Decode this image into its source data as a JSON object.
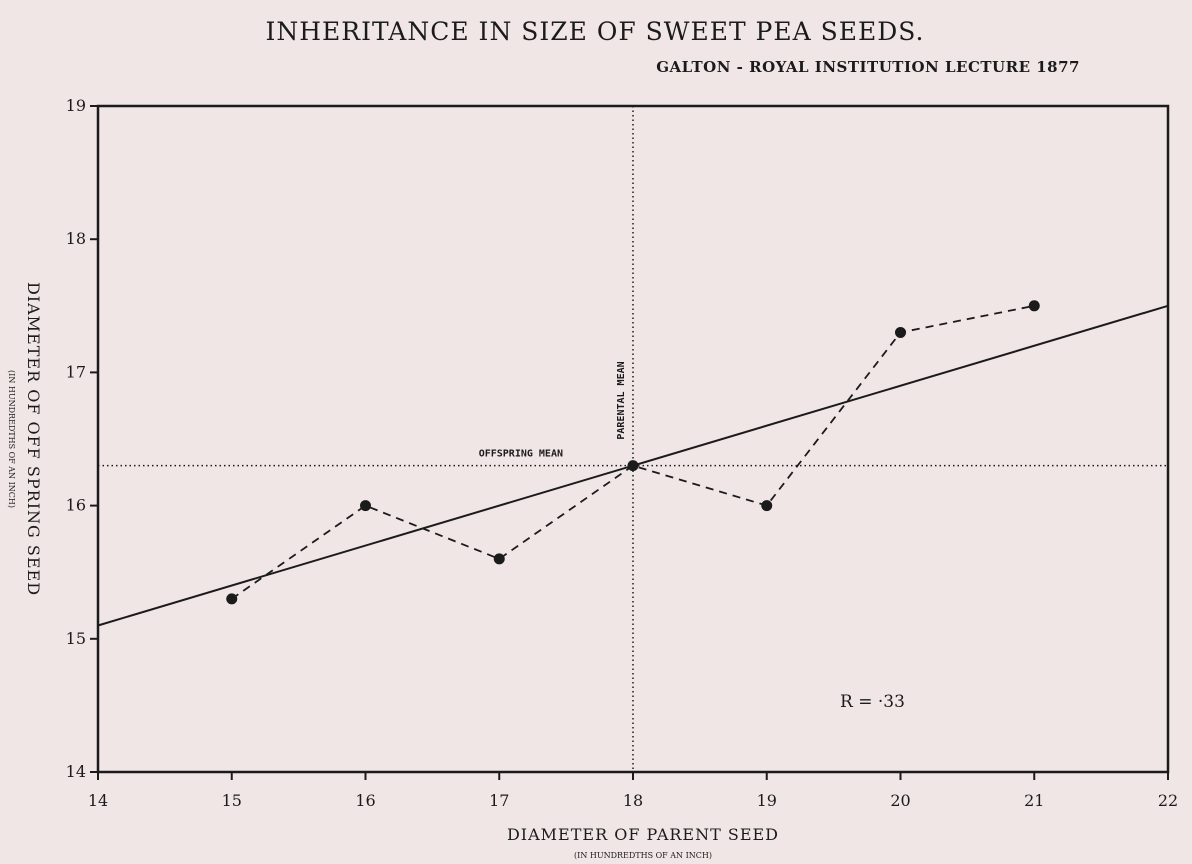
{
  "chart_data": {
    "type": "line",
    "title": "INHERITANCE IN SIZE OF SWEET PEA SEEDS.",
    "subtitle": "GALTON - ROYAL INSTITUTION LECTURE 1877",
    "xlabel": "DIAMETER OF PARENT SEED",
    "xlabel_sub": "(IN HUNDREDTHS OF AN INCH)",
    "ylabel": "DIAMETER OF OFF SPRING SEED",
    "ylabel_sub": "(IN HUNDREDTHS OF AN INCH)",
    "xlim": [
      14,
      22
    ],
    "ylim": [
      14,
      19
    ],
    "x_ticks": [
      "14",
      "15",
      "16",
      "17",
      "18",
      "19",
      "20",
      "21",
      "22"
    ],
    "y_ticks": [
      "14",
      "15",
      "16",
      "17",
      "18",
      "19"
    ],
    "series": [
      {
        "style": "dashed-with-points",
        "x": [
          15,
          16,
          17,
          18,
          19,
          20,
          21
        ],
        "y": [
          15.3,
          16.0,
          15.6,
          16.3,
          16.0,
          17.3,
          17.5
        ]
      }
    ],
    "regression_line": {
      "x": [
        14,
        22
      ],
      "y": [
        15.1,
        17.5
      ]
    },
    "reference_lines": {
      "parental_mean_x": 18,
      "offspring_mean_y": 16.3,
      "parental_mean_label": "PARENTAL MEAN",
      "offspring_mean_label": "OFFSPRING MEAN"
    },
    "annotation": "R = ·33",
    "grid": false
  }
}
